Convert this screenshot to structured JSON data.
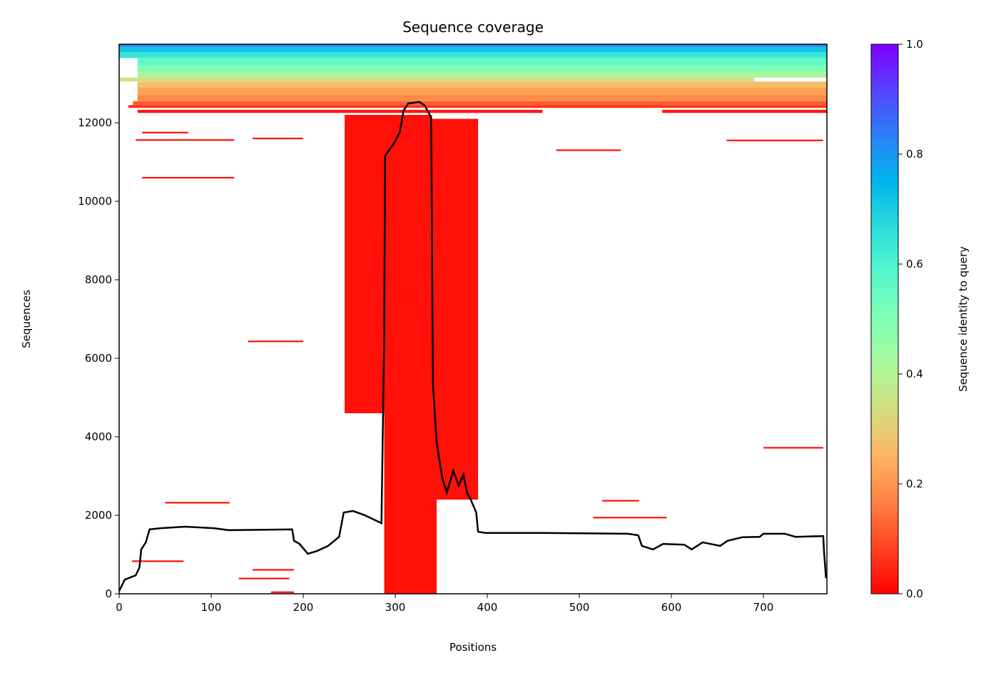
{
  "chart_data": {
    "type": "heatmap",
    "title": "Sequence coverage",
    "xlabel": "Positions",
    "ylabel": "Sequences",
    "xlim": [
      0,
      769
    ],
    "ylim": [
      0,
      14000
    ],
    "xticks": [
      0,
      100,
      200,
      300,
      400,
      500,
      600,
      700
    ],
    "yticks": [
      0,
      2000,
      4000,
      6000,
      8000,
      10000,
      12000
    ],
    "grid": false,
    "colorbar": {
      "label": "Sequence identity to query",
      "colormap": "rainbow_r",
      "range": [
        0,
        1
      ],
      "ticks": [
        "0.0",
        "0.2",
        "0.4",
        "0.6",
        "0.8",
        "1.0"
      ]
    },
    "coverage_line": {
      "color": "#000000",
      "x": [
        0,
        6,
        18,
        22,
        24,
        29,
        33,
        45,
        72,
        103,
        119,
        188,
        190,
        196,
        205,
        215,
        227,
        239,
        244,
        254,
        267,
        285,
        288,
        289,
        299,
        305,
        309,
        314,
        326,
        332,
        339,
        341,
        345,
        351,
        356,
        363,
        369,
        374,
        378,
        382,
        388,
        390,
        398,
        460,
        553,
        564,
        568,
        580,
        591,
        614,
        622,
        634,
        653,
        661,
        677,
        696,
        700,
        723,
        735,
        765,
        766,
        768
      ],
      "y": [
        70,
        360,
        470,
        670,
        1130,
        1310,
        1640,
        1670,
        1710,
        1670,
        1620,
        1640,
        1350,
        1270,
        1020,
        1090,
        1220,
        1450,
        2070,
        2110,
        2000,
        1800,
        6580,
        11160,
        11490,
        11760,
        12310,
        12490,
        12530,
        12440,
        12130,
        5310,
        3850,
        2950,
        2580,
        3130,
        2760,
        3040,
        2580,
        2400,
        2070,
        1580,
        1550,
        1550,
        1530,
        1490,
        1220,
        1130,
        1270,
        1250,
        1130,
        1310,
        1220,
        1350,
        1440,
        1450,
        1530,
        1530,
        1450,
        1470,
        1040,
        400
      ]
    },
    "alignment_blocks": [
      [
        0,
        769,
        13930,
        14000,
        0.82
      ],
      [
        0,
        769,
        13800,
        13930,
        0.72
      ],
      [
        0,
        769,
        13650,
        13800,
        0.64
      ],
      [
        20,
        769,
        13450,
        13650,
        0.56
      ],
      [
        20,
        769,
        13300,
        13450,
        0.5
      ],
      [
        20,
        769,
        13150,
        13300,
        0.42
      ],
      [
        0,
        690,
        13050,
        13150,
        0.34
      ],
      [
        20,
        769,
        12900,
        13050,
        0.27
      ],
      [
        20,
        769,
        12700,
        12900,
        0.22
      ],
      [
        20,
        769,
        12550,
        12700,
        0.18
      ],
      [
        15,
        769,
        12450,
        12550,
        0.12
      ],
      [
        10,
        769,
        12380,
        12450,
        0.06
      ],
      [
        20,
        460,
        12250,
        12330,
        0.03
      ],
      [
        590,
        769,
        12250,
        12330,
        0.03
      ],
      [
        288,
        340,
        0,
        12200,
        0.02
      ],
      [
        245,
        288,
        4600,
        12200,
        0.02
      ],
      [
        340,
        390,
        2400,
        12100,
        0.02
      ],
      [
        335,
        345,
        0,
        4600,
        0.02
      ],
      [
        25,
        125,
        10580,
        10620,
        0.02
      ],
      [
        145,
        200,
        11580,
        11620,
        0.02
      ],
      [
        18,
        125,
        11540,
        11580,
        0.02
      ],
      [
        25,
        75,
        11730,
        11770,
        0.02
      ],
      [
        475,
        545,
        11280,
        11320,
        0.02
      ],
      [
        660,
        765,
        11530,
        11570,
        0.02
      ],
      [
        140,
        200,
        6410,
        6450,
        0.02
      ],
      [
        700,
        765,
        3700,
        3740,
        0.02
      ],
      [
        515,
        595,
        1920,
        1960,
        0.02
      ],
      [
        525,
        565,
        2350,
        2390,
        0.02
      ],
      [
        50,
        120,
        2300,
        2340,
        0.02
      ],
      [
        14,
        70,
        810,
        850,
        0.02
      ],
      [
        145,
        190,
        590,
        630,
        0.02
      ],
      [
        130,
        185,
        370,
        410,
        0.02
      ],
      [
        165,
        190,
        20,
        60,
        0.02
      ]
    ]
  }
}
